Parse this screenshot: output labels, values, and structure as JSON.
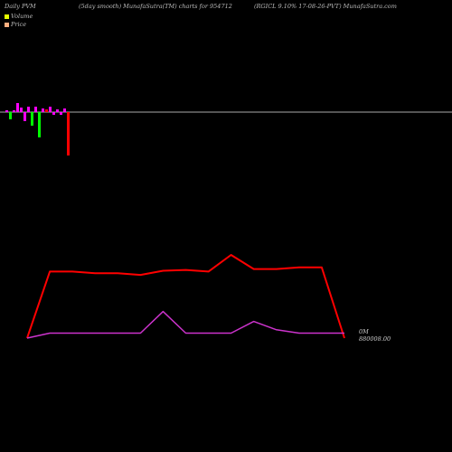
{
  "header": {
    "left": "Daily PVM",
    "center": "(5day smooth) MunafaSutra(TM) charts for 954712",
    "right": "(RGICL 9.10% 17-08-26-PVT) MunafaSutra.com"
  },
  "legend": {
    "items": [
      {
        "label": "Volume",
        "color": "#e5ff00"
      },
      {
        "label": "Price",
        "color": "#ffb080"
      }
    ]
  },
  "chart_data": {
    "type": "line",
    "volume_bars": {
      "values": [
        2,
        -8,
        2,
        10,
        5,
        -10,
        6,
        -15,
        6,
        -28,
        4,
        3,
        6,
        -3,
        3,
        -3,
        4,
        -48
      ],
      "colors": [
        "#ff00ff",
        "#00ff00",
        "#ff00ff",
        "#ff00ff",
        "#ff00ff",
        "#ff00ff",
        "#ff00ff",
        "#00ff00",
        "#ff00ff",
        "#00ff00",
        "#ff00ff",
        "#ff0000",
        "#ff00ff",
        "#ff00ff",
        "#ff00ff",
        "#ff00ff",
        "#ff00ff",
        "#ff0000"
      ]
    },
    "series": [
      {
        "color": "#ff0000",
        "values": [
          0.0,
          0.8,
          0.8,
          0.78,
          0.78,
          0.76,
          0.81,
          0.82,
          0.8,
          1.0,
          0.83,
          0.83,
          0.85,
          0.85,
          0.0
        ]
      },
      {
        "color": "#cc33cc",
        "values": [
          0.0,
          0.06,
          0.06,
          0.06,
          0.06,
          0.06,
          0.32,
          0.06,
          0.06,
          0.06,
          0.2,
          0.1,
          0.06,
          0.06,
          0.06
        ]
      }
    ],
    "right_labels": [
      "0M",
      "880008.00"
    ]
  }
}
